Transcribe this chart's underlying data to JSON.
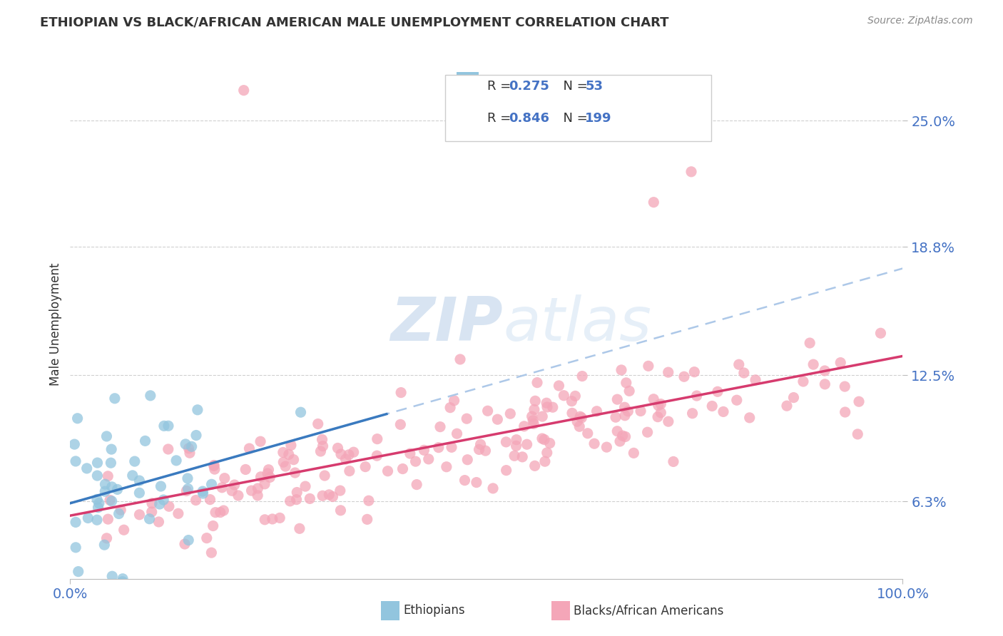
{
  "title": "ETHIOPIAN VS BLACK/AFRICAN AMERICAN MALE UNEMPLOYMENT CORRELATION CHART",
  "source": "Source: ZipAtlas.com",
  "ylabel": "Male Unemployment",
  "xlabel": "",
  "xlim": [
    0.0,
    1.0
  ],
  "ylim": [
    0.025,
    0.275
  ],
  "yticks": [
    0.063,
    0.125,
    0.188,
    0.25
  ],
  "ytick_labels": [
    "6.3%",
    "12.5%",
    "18.8%",
    "25.0%"
  ],
  "xtick_labels": [
    "0.0%",
    "100.0%"
  ],
  "xticks": [
    0.0,
    1.0
  ],
  "blue_R": 0.275,
  "blue_N": 53,
  "pink_R": 0.846,
  "pink_N": 199,
  "blue_scatter_color": "#92c5de",
  "pink_scatter_color": "#f4a6b8",
  "blue_line_color": "#3a7abf",
  "pink_line_color": "#d63b6e",
  "dashed_line_color": "#adc8e8",
  "legend_blue_label": "Ethiopians",
  "legend_pink_label": "Blacks/African Americans",
  "watermark_zip": "ZIP",
  "watermark_atlas": "atlas",
  "background_color": "#ffffff",
  "grid_color": "#d0d0d0",
  "title_color": "#333333",
  "axis_label_color": "#333333",
  "tick_color": "#4472c4",
  "source_color": "#888888"
}
